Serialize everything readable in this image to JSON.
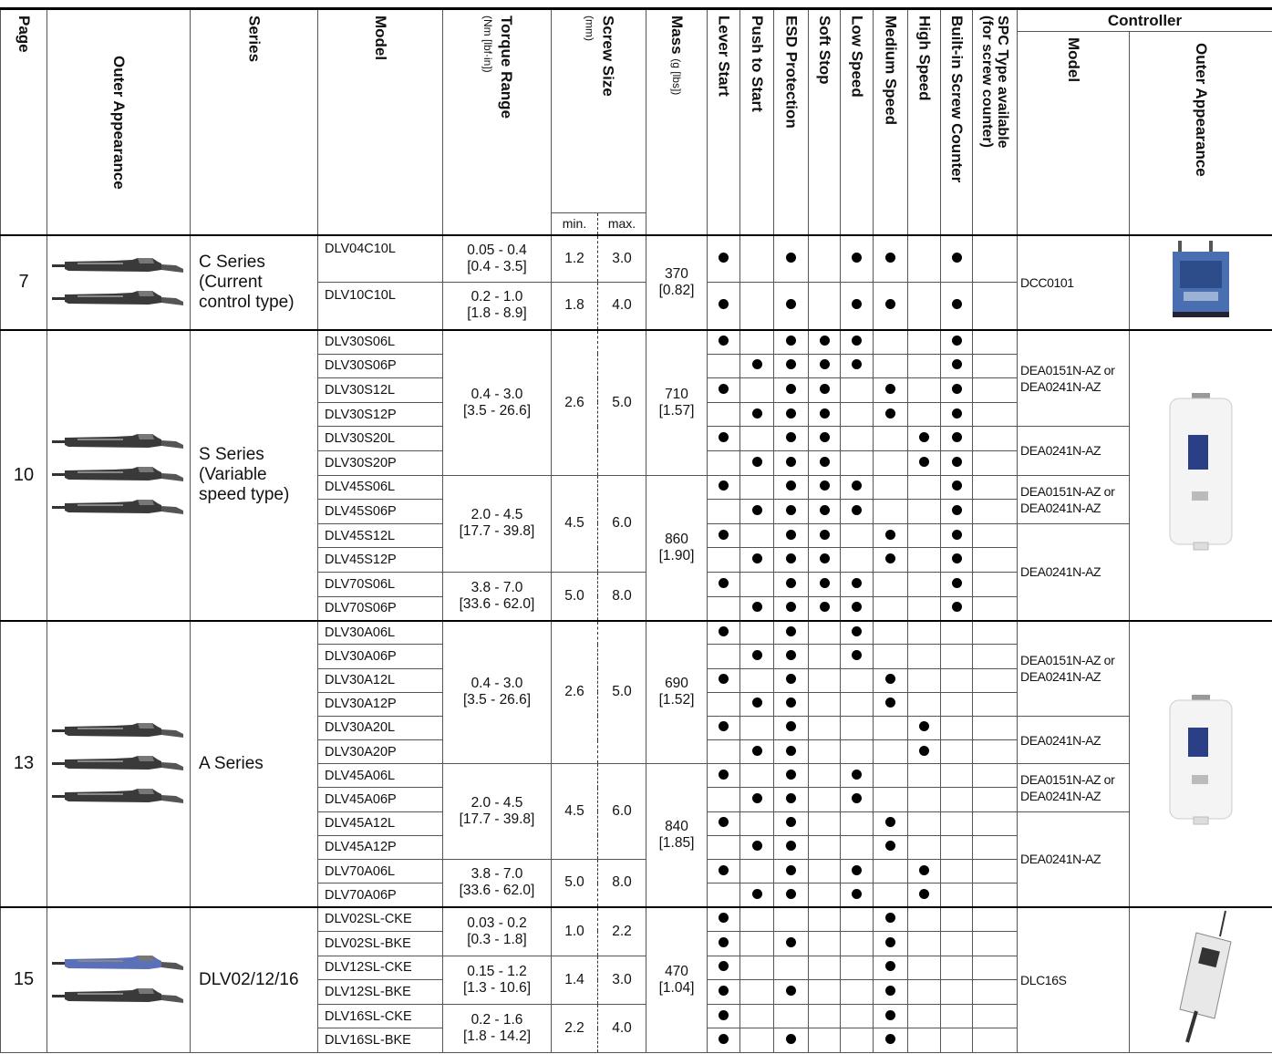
{
  "header": {
    "page": "Page",
    "outer_appearance": "Outer Appearance",
    "series": "Series",
    "model": "Model",
    "torque_range": "Torque Range",
    "torque_unit": "(Nm [lbf·in])",
    "screw_size": "Screw Size",
    "screw_unit": "(mm)",
    "min": "min.",
    "max": "max.",
    "mass": "Mass",
    "mass_unit": "(g [lbs])",
    "features": [
      "Lever Start",
      "Push to Start",
      "ESD Protection",
      "Soft Stop",
      "Low Speed",
      "Medium Speed",
      "High Speed",
      "Built-in Screw Counter"
    ],
    "spc": [
      "SPC Type available",
      "(for screw counter)"
    ],
    "controller": "Controller",
    "controller_model": "Model",
    "controller_appearance": "Outer Appearance"
  },
  "sections": [
    {
      "page": "7",
      "series": [
        "C Series",
        "(Current",
        "control type)"
      ],
      "rows": [
        {
          "model": "DLV04C10L",
          "torque": [
            "0.05 - 0.4",
            "[0.4 - 3.5]"
          ],
          "min": "1.2",
          "max": "3.0",
          "mass": [
            "370",
            "[0.82]"
          ],
          "dots": [
            1,
            0,
            1,
            0,
            1,
            1,
            0,
            1,
            0
          ],
          "controller": [
            "DCC0101"
          ]
        },
        {
          "model": "DLV10C10L",
          "torque": [
            "0.2 - 1.0",
            "[1.8 - 8.9]"
          ],
          "min": "1.8",
          "max": "4.0",
          "dots": [
            1,
            0,
            1,
            0,
            1,
            1,
            0,
            1,
            0
          ]
        }
      ]
    },
    {
      "page": "10",
      "series": [
        "S Series",
        "(Variable",
        "speed type)"
      ],
      "rows": [
        {
          "model": "DLV30S06L",
          "torque": [
            "0.4 - 3.0",
            "[3.5 - 26.6]"
          ],
          "min": "2.6",
          "max": "5.0",
          "mass": [
            "710",
            "[1.57]"
          ],
          "dots": [
            1,
            0,
            1,
            1,
            1,
            0,
            0,
            1,
            0
          ],
          "controller": [
            "DEA0151N-AZ or",
            "DEA0241N-AZ"
          ]
        },
        {
          "model": "DLV30S06P",
          "dots": [
            0,
            1,
            1,
            1,
            1,
            0,
            0,
            1,
            0
          ]
        },
        {
          "model": "DLV30S12L",
          "dots": [
            1,
            0,
            1,
            1,
            0,
            1,
            0,
            1,
            0
          ]
        },
        {
          "model": "DLV30S12P",
          "dots": [
            0,
            1,
            1,
            1,
            0,
            1,
            0,
            1,
            0
          ]
        },
        {
          "model": "DLV30S20L",
          "dots": [
            1,
            0,
            1,
            1,
            0,
            0,
            1,
            1,
            0
          ],
          "controller": [
            "DEA0241N-AZ"
          ]
        },
        {
          "model": "DLV30S20P",
          "dots": [
            0,
            1,
            1,
            1,
            0,
            0,
            1,
            1,
            0
          ]
        },
        {
          "model": "DLV45S06L",
          "torque": [
            "2.0 - 4.5",
            "[17.7 - 39.8]"
          ],
          "min": "4.5",
          "max": "6.0",
          "mass": [
            "860",
            "[1.90]"
          ],
          "dots": [
            1,
            0,
            1,
            1,
            1,
            0,
            0,
            1,
            0
          ],
          "controller": [
            "DEA0151N-AZ or",
            "DEA0241N-AZ"
          ]
        },
        {
          "model": "DLV45S06P",
          "dots": [
            0,
            1,
            1,
            1,
            1,
            0,
            0,
            1,
            0
          ]
        },
        {
          "model": "DLV45S12L",
          "dots": [
            1,
            0,
            1,
            1,
            0,
            1,
            0,
            1,
            0
          ],
          "controller": [
            "DEA0241N-AZ"
          ]
        },
        {
          "model": "DLV45S12P",
          "dots": [
            0,
            1,
            1,
            1,
            0,
            1,
            0,
            1,
            0
          ]
        },
        {
          "model": "DLV70S06L",
          "torque": [
            "3.8 - 7.0",
            "[33.6 - 62.0]"
          ],
          "min": "5.0",
          "max": "8.0",
          "dots": [
            1,
            0,
            1,
            1,
            1,
            0,
            0,
            1,
            0
          ]
        },
        {
          "model": "DLV70S06P",
          "dots": [
            0,
            1,
            1,
            1,
            1,
            0,
            0,
            1,
            0
          ]
        }
      ]
    },
    {
      "page": "13",
      "series": [
        "A Series"
      ],
      "rows": [
        {
          "model": "DLV30A06L",
          "torque": [
            "0.4 - 3.0",
            "[3.5 - 26.6]"
          ],
          "min": "2.6",
          "max": "5.0",
          "mass": [
            "690",
            "[1.52]"
          ],
          "dots": [
            1,
            0,
            1,
            0,
            1,
            0,
            0,
            0,
            0
          ],
          "controller": [
            "DEA0151N-AZ or",
            "DEA0241N-AZ"
          ]
        },
        {
          "model": "DLV30A06P",
          "dots": [
            0,
            1,
            1,
            0,
            1,
            0,
            0,
            0,
            0
          ]
        },
        {
          "model": "DLV30A12L",
          "dots": [
            1,
            0,
            1,
            0,
            0,
            1,
            0,
            0,
            0
          ]
        },
        {
          "model": "DLV30A12P",
          "dots": [
            0,
            1,
            1,
            0,
            0,
            1,
            0,
            0,
            0
          ]
        },
        {
          "model": "DLV30A20L",
          "dots": [
            1,
            0,
            1,
            0,
            0,
            0,
            1,
            0,
            0
          ],
          "controller": [
            "DEA0241N-AZ"
          ]
        },
        {
          "model": "DLV30A20P",
          "dots": [
            0,
            1,
            1,
            0,
            0,
            0,
            1,
            0,
            0
          ]
        },
        {
          "model": "DLV45A06L",
          "torque": [
            "2.0 - 4.5",
            "[17.7 - 39.8]"
          ],
          "min": "4.5",
          "max": "6.0",
          "mass": [
            "840",
            "[1.85]"
          ],
          "dots": [
            1,
            0,
            1,
            0,
            1,
            0,
            0,
            0,
            0
          ],
          "controller": [
            "DEA0151N-AZ or",
            "DEA0241N-AZ"
          ]
        },
        {
          "model": "DLV45A06P",
          "dots": [
            0,
            1,
            1,
            0,
            1,
            0,
            0,
            0,
            0
          ]
        },
        {
          "model": "DLV45A12L",
          "dots": [
            1,
            0,
            1,
            0,
            0,
            1,
            0,
            0,
            0
          ],
          "controller": [
            "DEA0241N-AZ"
          ]
        },
        {
          "model": "DLV45A12P",
          "dots": [
            0,
            1,
            1,
            0,
            0,
            1,
            0,
            0,
            0
          ]
        },
        {
          "model": "DLV70A06L",
          "torque": [
            "3.8 - 7.0",
            "[33.6 - 62.0]"
          ],
          "min": "5.0",
          "max": "8.0",
          "dots": [
            1,
            0,
            1,
            0,
            1,
            0,
            1,
            0,
            0
          ]
        },
        {
          "model": "DLV70A06P",
          "dots": [
            0,
            1,
            1,
            0,
            1,
            0,
            1,
            0,
            0
          ]
        }
      ]
    },
    {
      "page": "15",
      "series": [
        "DLV02/12/16"
      ],
      "rows": [
        {
          "model": "DLV02SL-CKE",
          "torque": [
            "0.03 - 0.2",
            "[0.3 - 1.8]"
          ],
          "min": "1.0",
          "max": "2.2",
          "mass": [
            "470",
            "[1.04]"
          ],
          "dots": [
            1,
            0,
            0,
            0,
            0,
            1,
            0,
            0,
            0
          ],
          "controller": [
            "DLC16S"
          ]
        },
        {
          "model": "DLV02SL-BKE",
          "dots": [
            1,
            0,
            1,
            0,
            0,
            1,
            0,
            0,
            0
          ]
        },
        {
          "model": "DLV12SL-CKE",
          "torque": [
            "0.15 - 1.2",
            "[1.3 - 10.6]"
          ],
          "min": "1.4",
          "max": "3.0",
          "dots": [
            1,
            0,
            0,
            0,
            0,
            1,
            0,
            0,
            0
          ]
        },
        {
          "model": "DLV12SL-BKE",
          "dots": [
            1,
            0,
            1,
            0,
            0,
            1,
            0,
            0,
            0
          ]
        },
        {
          "model": "DLV16SL-CKE",
          "torque": [
            "0.2 - 1.6",
            "[1.8 - 14.2]"
          ],
          "min": "2.2",
          "max": "4.0",
          "dots": [
            1,
            0,
            0,
            0,
            0,
            1,
            0,
            0,
            0
          ]
        },
        {
          "model": "DLV16SL-BKE",
          "dots": [
            1,
            0,
            1,
            0,
            0,
            1,
            0,
            0,
            0
          ]
        }
      ]
    }
  ]
}
